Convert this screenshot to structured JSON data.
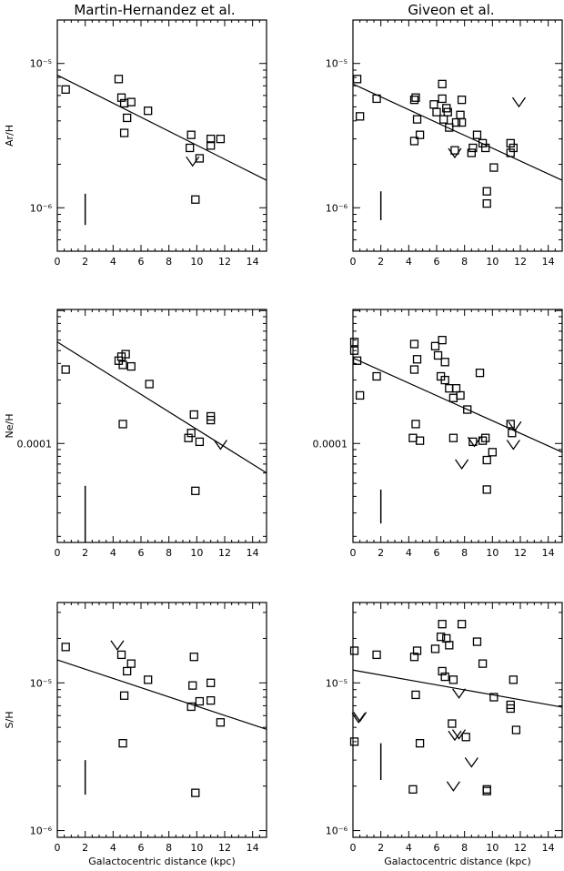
{
  "columns": [
    "Martin-Hernandez et al.",
    "Giveon et al."
  ],
  "chart_data": [
    {
      "type": "scatter",
      "panel": "Ar-Martin",
      "col": 0,
      "row": 0,
      "ylabel": "Ar/H",
      "xlabel": "",
      "xlim": [
        0,
        15
      ],
      "ylim": [
        5e-07,
        2e-05
      ],
      "yscale": "log",
      "xticks": [
        0,
        2,
        4,
        6,
        8,
        10,
        12,
        14
      ],
      "yticks": [
        {
          "v": 1e-05,
          "label": "10⁻⁵"
        },
        {
          "v": 1e-06,
          "label": "10⁻⁶"
        }
      ],
      "points": [
        [
          0.6,
          6.6e-06
        ],
        [
          4.4,
          7.8e-06
        ],
        [
          4.6,
          5.8e-06
        ],
        [
          4.8,
          3.3e-06
        ],
        [
          4.8,
          5.3e-06
        ],
        [
          5.0,
          4.2e-06
        ],
        [
          5.3,
          5.4e-06
        ],
        [
          6.5,
          4.7e-06
        ],
        [
          9.6,
          3.2e-06
        ],
        [
          9.5,
          2.6e-06
        ],
        [
          9.9,
          1.14e-06
        ],
        [
          10.2,
          2.2e-06
        ],
        [
          11.0,
          3e-06
        ],
        [
          11.0,
          2.7e-06
        ],
        [
          11.7,
          3e-06
        ]
      ],
      "upper_limits": [
        [
          9.7,
          2.1e-06
        ]
      ],
      "fit": {
        "x": [
          0,
          15
        ],
        "y": [
          8.3e-06,
          1.55e-06
        ]
      },
      "error_bar": {
        "x": 2,
        "y": [
          7.6e-07,
          1.25e-06
        ]
      }
    },
    {
      "type": "scatter",
      "panel": "Ar-Giveon",
      "col": 1,
      "row": 0,
      "ylabel": "",
      "xlabel": "",
      "xlim": [
        0,
        15
      ],
      "ylim": [
        5e-07,
        2e-05
      ],
      "yscale": "log",
      "xticks": [
        0,
        2,
        4,
        6,
        8,
        10,
        12,
        14
      ],
      "yticks": [
        {
          "v": 1e-05,
          "label": "10⁻⁵"
        },
        {
          "v": 1e-06,
          "label": "10⁻⁶"
        }
      ],
      "points": [
        [
          0.3,
          7.8e-06
        ],
        [
          0.5,
          4.3e-06
        ],
        [
          1.7,
          5.7e-06
        ],
        [
          4.4,
          5.6e-06
        ],
        [
          4.5,
          5.8e-06
        ],
        [
          4.6,
          4.1e-06
        ],
        [
          4.4,
          2.9e-06
        ],
        [
          4.8,
          3.2e-06
        ],
        [
          5.8,
          5.2e-06
        ],
        [
          6.0,
          4.6e-06
        ],
        [
          6.4,
          7.2e-06
        ],
        [
          6.4,
          5.7e-06
        ],
        [
          6.5,
          4.1e-06
        ],
        [
          6.7,
          4.9e-06
        ],
        [
          6.8,
          4.6e-06
        ],
        [
          6.9,
          3.6e-06
        ],
        [
          7.3,
          2.5e-06
        ],
        [
          7.4,
          3.9e-06
        ],
        [
          7.7,
          4.4e-06
        ],
        [
          7.8,
          5.6e-06
        ],
        [
          7.8,
          3.9e-06
        ],
        [
          8.5,
          2.4e-06
        ],
        [
          8.6,
          2.6e-06
        ],
        [
          8.9,
          3.2e-06
        ],
        [
          9.3,
          2.8e-06
        ],
        [
          9.5,
          2.6e-06
        ],
        [
          9.6,
          1.3e-06
        ],
        [
          9.6,
          1.07e-06
        ],
        [
          10.1,
          1.9e-06
        ],
        [
          11.3,
          2.8e-06
        ],
        [
          11.3,
          2.4e-06
        ],
        [
          11.5,
          2.6e-06
        ]
      ],
      "upper_limits": [
        [
          7.3,
          2.4e-06
        ],
        [
          11.9,
          5.4e-06
        ]
      ],
      "fit": {
        "x": [
          0,
          15
        ],
        "y": [
          7.2e-06,
          1.55e-06
        ]
      },
      "error_bar": {
        "x": 2,
        "y": [
          8.2e-07,
          1.3e-06
        ]
      }
    },
    {
      "type": "scatter",
      "panel": "Ne-Martin",
      "col": 0,
      "row": 1,
      "ylabel": "Ne/H",
      "xlabel": "",
      "xlim": [
        0,
        15
      ],
      "ylim": [
        1.8e-05,
        0.00102
      ],
      "yscale": "log",
      "xticks": [
        0,
        2,
        4,
        6,
        8,
        10,
        12,
        14
      ],
      "yticks": [
        {
          "v": 0.0001,
          "label": "0.0001"
        }
      ],
      "points": [
        [
          0.6,
          0.00036
        ],
        [
          4.4,
          0.00042
        ],
        [
          4.6,
          0.00045
        ],
        [
          4.7,
          0.00039
        ],
        [
          4.9,
          0.00047
        ],
        [
          5.3,
          0.00038
        ],
        [
          6.6,
          0.00028
        ],
        [
          4.7,
          0.00014
        ],
        [
          9.4,
          0.00011
        ],
        [
          9.6,
          0.00012
        ],
        [
          9.8,
          0.000165
        ],
        [
          9.9,
          4.4e-05
        ],
        [
          10.2,
          0.000103
        ],
        [
          11.0,
          0.00016
        ],
        [
          11.0,
          0.00015
        ]
      ],
      "upper_limits": [
        [
          11.7,
          9.8e-05
        ]
      ],
      "fit": {
        "x": [
          0,
          15
        ],
        "y": [
          0.00058,
          6e-05
        ]
      },
      "error_bar": {
        "x": 2,
        "y": [
          1.8e-05,
          4.8e-05
        ]
      }
    },
    {
      "type": "scatter",
      "panel": "Ne-Giveon",
      "col": 1,
      "row": 1,
      "ylabel": "",
      "xlabel": "",
      "xlim": [
        0,
        15
      ],
      "ylim": [
        1.8e-05,
        0.00102
      ],
      "yscale": "log",
      "xticks": [
        0,
        2,
        4,
        6,
        8,
        10,
        12,
        14
      ],
      "yticks": [
        {
          "v": 0.0001,
          "label": "0.0001"
        }
      ],
      "points": [
        [
          0.1,
          0.00058
        ],
        [
          0.1,
          0.0005
        ],
        [
          0.3,
          0.00042
        ],
        [
          0.5,
          0.00023
        ],
        [
          1.7,
          0.00032
        ],
        [
          4.4,
          0.00056
        ],
        [
          4.4,
          0.00036
        ],
        [
          4.6,
          0.00043
        ],
        [
          4.5,
          0.00014
        ],
        [
          4.3,
          0.00011
        ],
        [
          4.8,
          0.000105
        ],
        [
          5.9,
          0.00054
        ],
        [
          6.1,
          0.00046
        ],
        [
          6.3,
          0.00032
        ],
        [
          6.4,
          0.0006
        ],
        [
          6.6,
          0.0003
        ],
        [
          6.6,
          0.00041
        ],
        [
          6.9,
          0.00026
        ],
        [
          7.2,
          0.00022
        ],
        [
          7.4,
          0.00026
        ],
        [
          7.2,
          0.00011
        ],
        [
          7.7,
          0.00023
        ],
        [
          8.2,
          0.00018
        ],
        [
          8.6,
          0.000103
        ],
        [
          9.1,
          0.00034
        ],
        [
          9.3,
          0.000105
        ],
        [
          9.5,
          0.00011
        ],
        [
          9.6,
          7.5e-05
        ],
        [
          9.6,
          4.5e-05
        ],
        [
          10.0,
          8.6e-05
        ],
        [
          11.3,
          0.00014
        ],
        [
          11.4,
          0.00012
        ]
      ],
      "upper_limits": [
        [
          7.8,
          7e-05
        ],
        [
          8.7,
          0.000103
        ],
        [
          11.5,
          9.8e-05
        ],
        [
          11.6,
          0.000135
        ]
      ],
      "fit": {
        "x": [
          0,
          15
        ],
        "y": [
          0.00044,
          8.6e-05
        ]
      },
      "error_bar": {
        "x": 2,
        "y": [
          2.5e-05,
          4.5e-05
        ]
      }
    },
    {
      "type": "scatter",
      "panel": "S-Martin",
      "col": 0,
      "row": 2,
      "ylabel": "S/H",
      "xlabel": "Galactocentric distance (kpc)",
      "xlim": [
        0,
        15
      ],
      "ylim": [
        9e-07,
        3.5e-05
      ],
      "yscale": "log",
      "xticks": [
        0,
        2,
        4,
        6,
        8,
        10,
        12,
        14
      ],
      "yticks": [
        {
          "v": 1e-05,
          "label": "10⁻⁵"
        },
        {
          "v": 1e-06,
          "label": "10⁻⁶"
        }
      ],
      "points": [
        [
          0.6,
          1.75e-05
        ],
        [
          4.6,
          1.55e-05
        ],
        [
          4.8,
          8.2e-06
        ],
        [
          5.0,
          1.2e-05
        ],
        [
          5.3,
          1.35e-05
        ],
        [
          6.5,
          1.05e-05
        ],
        [
          4.7,
          3.9e-06
        ],
        [
          9.6,
          6.9e-06
        ],
        [
          9.7,
          9.6e-06
        ],
        [
          9.8,
          1.5e-05
        ],
        [
          9.9,
          1.8e-06
        ],
        [
          10.2,
          7.5e-06
        ],
        [
          11.0,
          1e-05
        ],
        [
          11.0,
          7.6e-06
        ],
        [
          11.7,
          5.4e-06
        ]
      ],
      "upper_limits": [
        [
          4.3,
          1.8e-05
        ]
      ],
      "fit": {
        "x": [
          0,
          15
        ],
        "y": [
          1.43e-05,
          4.85e-06
        ]
      },
      "error_bar": {
        "x": 2,
        "y": [
          1.75e-06,
          3e-06
        ]
      }
    },
    {
      "type": "scatter",
      "panel": "S-Giveon",
      "col": 1,
      "row": 2,
      "ylabel": "",
      "xlabel": "Galactocentric distance (kpc)",
      "xlim": [
        0,
        15
      ],
      "ylim": [
        9e-07,
        3.5e-05
      ],
      "yscale": "log",
      "xticks": [
        0,
        2,
        4,
        6,
        8,
        10,
        12,
        14
      ],
      "yticks": [
        {
          "v": 1e-05,
          "label": "10⁻⁵"
        },
        {
          "v": 1e-06,
          "label": "10⁻⁶"
        }
      ],
      "points": [
        [
          0.1,
          1.65e-05
        ],
        [
          0.1,
          4e-06
        ],
        [
          1.7,
          1.55e-05
        ],
        [
          4.4,
          1.5e-05
        ],
        [
          4.6,
          1.65e-05
        ],
        [
          4.5,
          8.3e-06
        ],
        [
          4.8,
          3.9e-06
        ],
        [
          4.3,
          1.9e-06
        ],
        [
          5.9,
          1.7e-05
        ],
        [
          6.3,
          2.05e-05
        ],
        [
          6.4,
          2.5e-05
        ],
        [
          6.4,
          1.2e-05
        ],
        [
          6.6,
          1.1e-05
        ],
        [
          6.7,
          2e-05
        ],
        [
          6.9,
          1.8e-05
        ],
        [
          7.2,
          1.05e-05
        ],
        [
          7.1,
          5.3e-06
        ],
        [
          7.8,
          2.5e-05
        ],
        [
          8.1,
          4.3e-06
        ],
        [
          8.9,
          1.9e-05
        ],
        [
          9.3,
          1.35e-05
        ],
        [
          9.6,
          1.85e-06
        ],
        [
          9.6,
          1.9e-06
        ],
        [
          10.1,
          8e-06
        ],
        [
          11.3,
          7.1e-06
        ],
        [
          11.3,
          6.7e-06
        ],
        [
          11.5,
          1.05e-05
        ],
        [
          11.7,
          4.8e-06
        ]
      ],
      "upper_limits": [
        [
          0.4,
          5.8e-06
        ],
        [
          0.5,
          5.9e-06
        ],
        [
          7.2,
          2e-06
        ],
        [
          7.3,
          4.4e-06
        ],
        [
          7.6,
          4.5e-06
        ],
        [
          7.6,
          8.5e-06
        ],
        [
          8.5,
          2.9e-06
        ]
      ],
      "fit": {
        "x": [
          0,
          15
        ],
        "y": [
          1.22e-05,
          6.85e-06
        ]
      },
      "error_bar": {
        "x": 2,
        "y": [
          2.2e-06,
          3.9e-06
        ]
      }
    }
  ]
}
